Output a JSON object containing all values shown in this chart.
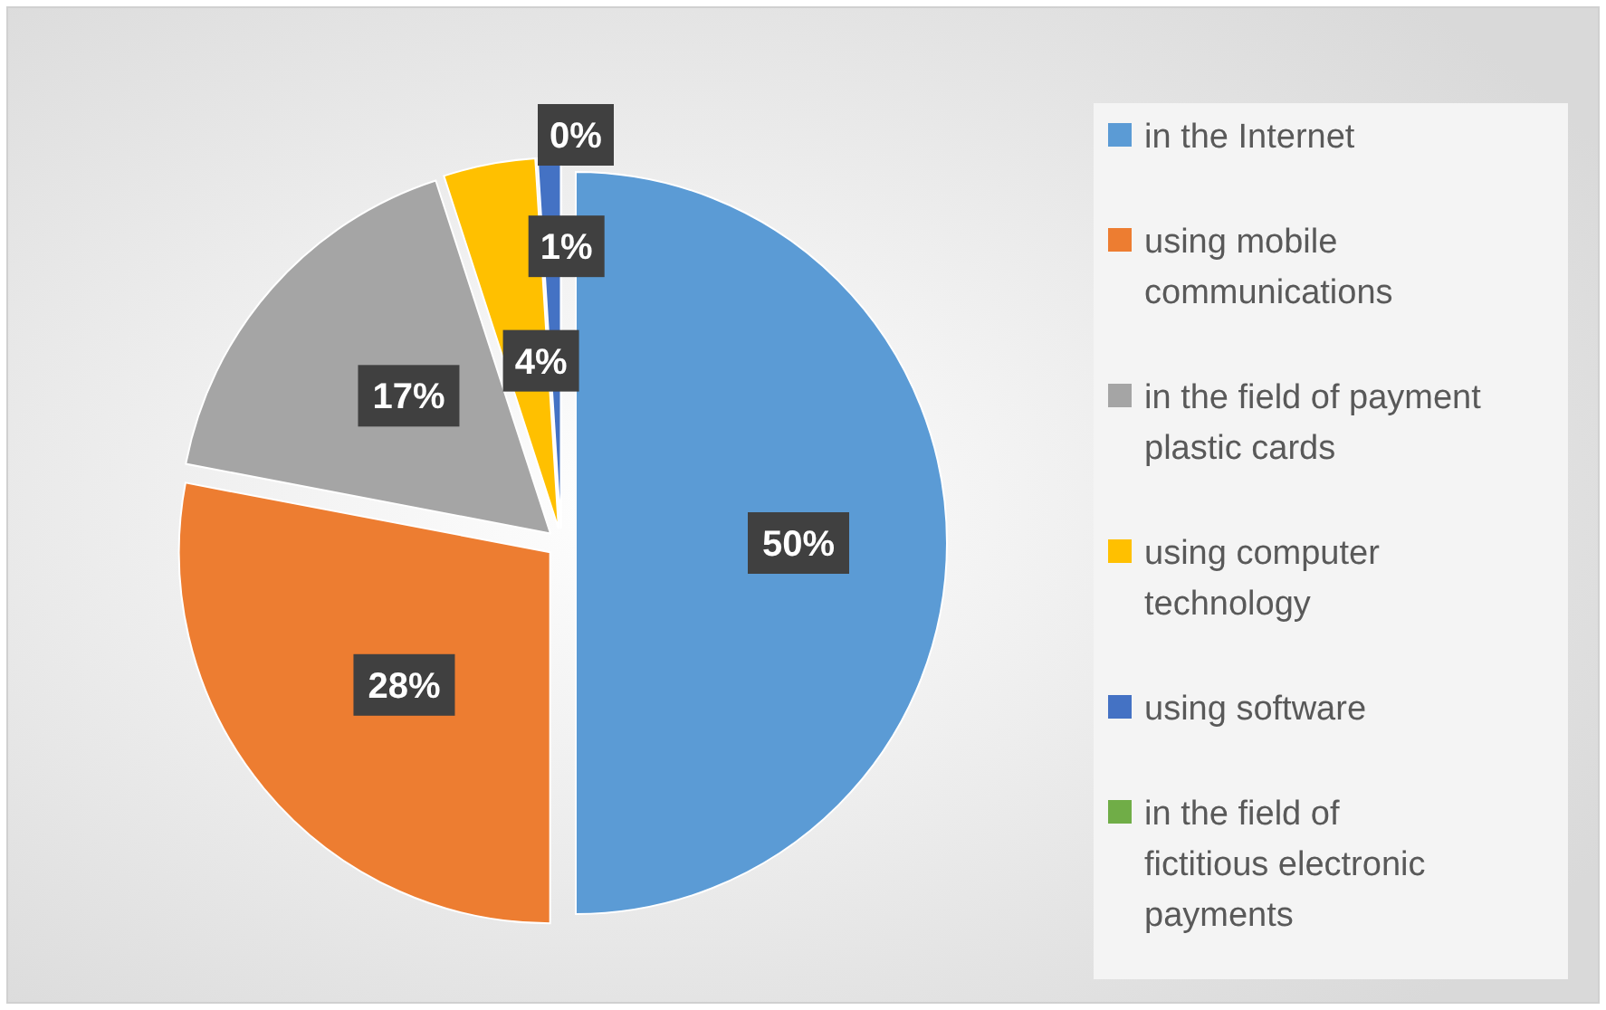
{
  "chart_data": {
    "type": "pie",
    "categories": [
      "in the Internet",
      "using mobile communications",
      "in the field of payment plastic cards",
      "using computer technology",
      "using software",
      "in the field of fictitious electronic payments"
    ],
    "values": [
      50,
      28,
      17,
      4,
      1,
      0
    ],
    "value_labels": [
      "50%",
      "28%",
      "17%",
      "4%",
      "1%",
      "0%"
    ],
    "colors": [
      "#5b9bd5",
      "#ed7d31",
      "#a5a5a5",
      "#ffc000",
      "#4472c4",
      "#70ad47"
    ],
    "legend": "right"
  }
}
